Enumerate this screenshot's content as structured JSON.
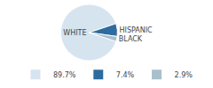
{
  "chart_data": {
    "type": "pie",
    "categories": [
      "WHITE",
      "HISPANIC",
      "BLACK"
    ],
    "values": [
      89.7,
      7.4,
      2.9
    ],
    "value_labels": [
      "89.7%",
      "7.4%",
      "2.9%"
    ],
    "colors": [
      "#d6e4f0",
      "#2e6b9e",
      "#a8bfcc"
    ],
    "legend": "bottom"
  }
}
